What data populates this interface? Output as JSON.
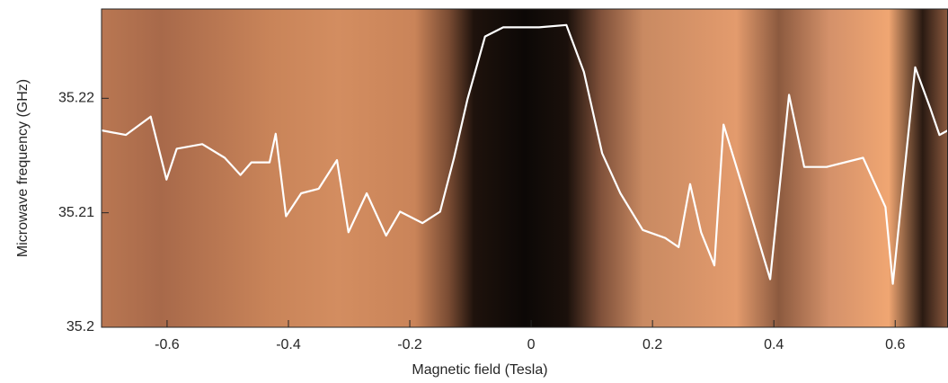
{
  "chart_data": {
    "type": "line",
    "xlabel": "Magnetic field (Tesla)",
    "ylabel": "Microwave frequency (GHz)",
    "xlim": [
      -0.708,
      0.687
    ],
    "ylim": [
      35.2,
      35.2278
    ],
    "xticks": [
      -0.6,
      -0.4,
      -0.2,
      0,
      0.2,
      0.4,
      0.6
    ],
    "yticks": [
      35.2,
      35.21,
      35.22
    ],
    "color": "#ffffff",
    "x": [
      -0.708,
      -0.668,
      -0.627,
      -0.601,
      -0.584,
      -0.542,
      -0.505,
      -0.479,
      -0.461,
      -0.431,
      -0.421,
      -0.404,
      -0.379,
      -0.35,
      -0.32,
      -0.301,
      -0.271,
      -0.239,
      -0.216,
      -0.179,
      -0.15,
      -0.127,
      -0.105,
      -0.076,
      -0.046,
      0.013,
      0.058,
      0.087,
      0.117,
      0.147,
      0.184,
      0.221,
      0.243,
      0.262,
      0.28,
      0.302,
      0.317,
      0.354,
      0.394,
      0.425,
      0.45,
      0.487,
      0.547,
      0.584,
      0.596,
      0.633,
      0.658,
      0.673,
      0.687
    ],
    "values": [
      35.2172,
      35.2168,
      35.2184,
      35.2129,
      35.2156,
      35.216,
      35.2148,
      35.2133,
      35.2144,
      35.2144,
      35.2169,
      35.2097,
      35.2117,
      35.2121,
      35.2146,
      35.2083,
      35.2117,
      35.208,
      35.2101,
      35.2091,
      35.2101,
      35.2148,
      35.2199,
      35.2254,
      35.2262,
      35.2262,
      35.2264,
      35.2223,
      35.2152,
      35.2117,
      35.2085,
      35.2078,
      35.207,
      35.2125,
      35.2083,
      35.2054,
      35.2177,
      35.2113,
      35.2042,
      35.2203,
      35.214,
      35.214,
      35.2148,
      35.2105,
      35.2038,
      35.2227,
      35.2191,
      35.2168,
      35.2172
    ]
  }
}
